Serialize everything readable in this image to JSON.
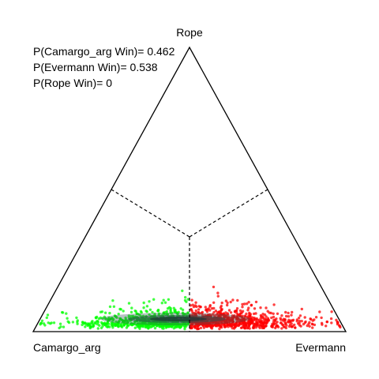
{
  "chart_data": {
    "type": "scatter",
    "title": "",
    "vertices": {
      "left": "Camargo_arg",
      "right": "Evermann",
      "top": "Rope"
    },
    "probabilities": [
      {
        "label": "P(Camargo_arg Win)= 0.462",
        "name": "Camargo_arg",
        "value": 0.462
      },
      {
        "label": "P(Evermann Win)= 0.538",
        "name": "Evermann",
        "value": 0.538
      },
      {
        "label": "P(Rope Win)= 0",
        "name": "Rope",
        "value": 0
      }
    ],
    "region_colors": {
      "Camargo_arg": "#00ff00",
      "Evermann": "#ff0000",
      "density_core": "#2f4f4f"
    },
    "axes": {
      "coordinates": "barycentric",
      "range": [
        0,
        1
      ]
    },
    "grid": false,
    "legend": "top-left"
  }
}
